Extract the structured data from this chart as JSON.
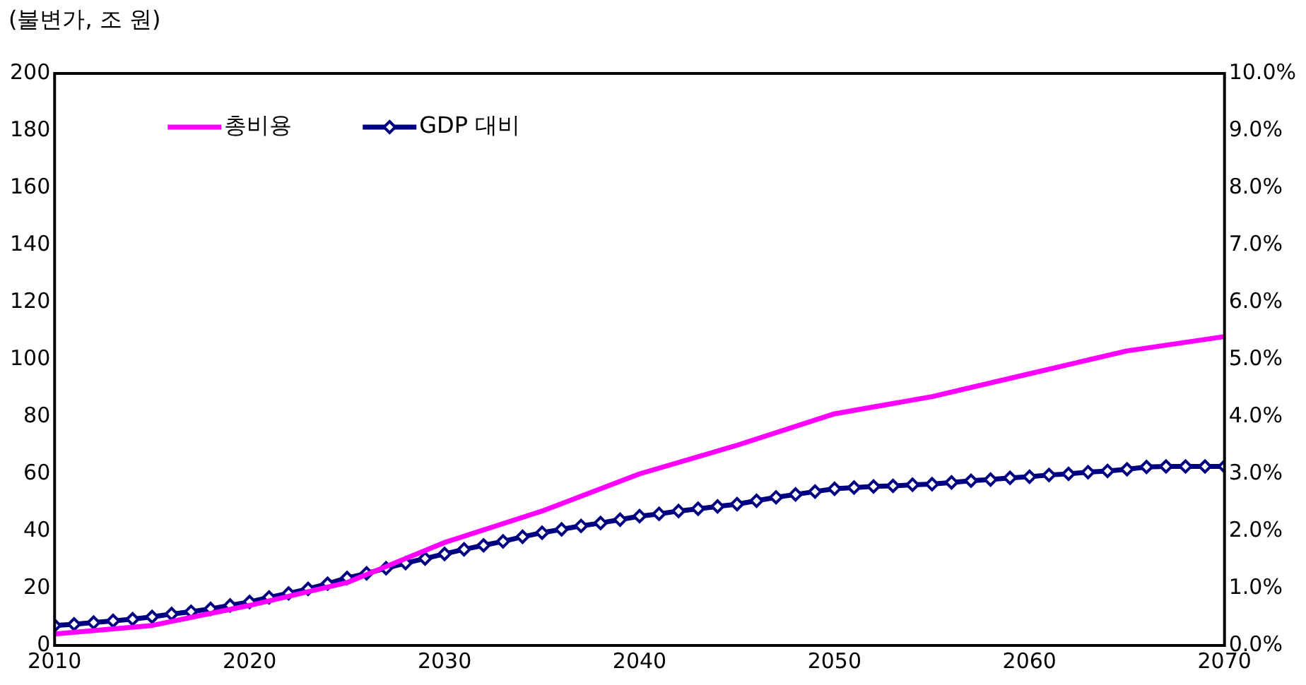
{
  "chart_data": {
    "type": "line",
    "ylabel": "(불변가, 조 원)",
    "legend": "top left",
    "grid": false,
    "x": [
      2010,
      2011,
      2012,
      2013,
      2014,
      2015,
      2016,
      2017,
      2018,
      2019,
      2020,
      2021,
      2022,
      2023,
      2024,
      2025,
      2026,
      2027,
      2028,
      2029,
      2030,
      2031,
      2032,
      2033,
      2034,
      2035,
      2036,
      2037,
      2038,
      2039,
      2040,
      2041,
      2042,
      2043,
      2044,
      2045,
      2046,
      2047,
      2048,
      2049,
      2050,
      2051,
      2052,
      2053,
      2054,
      2055,
      2056,
      2057,
      2058,
      2059,
      2060,
      2061,
      2062,
      2063,
      2064,
      2065,
      2066,
      2067,
      2068,
      2069,
      2070
    ],
    "xlim": [
      2010,
      2070
    ],
    "xticks": [
      2010,
      2020,
      2030,
      2040,
      2050,
      2060,
      2070
    ],
    "ylim": [
      0,
      200
    ],
    "yticks": [
      0,
      20,
      40,
      60,
      80,
      100,
      120,
      140,
      160,
      180,
      200
    ],
    "y2lim": [
      0,
      10
    ],
    "y2ticks": [
      {
        "value": 0,
        "label": "0.0%"
      },
      {
        "value": 1,
        "label": "1.0%"
      },
      {
        "value": 2,
        "label": "2.0%"
      },
      {
        "value": 3,
        "label": "3.0%"
      },
      {
        "value": 4,
        "label": "4.0%"
      },
      {
        "value": 5,
        "label": "5.0%"
      },
      {
        "value": 6,
        "label": "6.0%"
      },
      {
        "value": 7,
        "label": "7.0%"
      },
      {
        "value": 8,
        "label": "8.0%"
      },
      {
        "value": 9,
        "label": "9.0%"
      },
      {
        "value": 10,
        "label": "10.0%"
      }
    ],
    "series": [
      {
        "name": "총비용",
        "color": "#ff00ff",
        "marker": "none",
        "x": [
          2010,
          2015,
          2020,
          2025,
          2030,
          2035,
          2040,
          2045,
          2050,
          2055,
          2060,
          2065,
          2070
        ],
        "values": [
          4,
          7,
          14,
          22,
          36,
          47,
          60,
          70,
          81,
          87,
          95,
          103,
          108
        ]
      },
      {
        "name": "GDP 대비",
        "color": "#000080",
        "axis": "y2",
        "marker": "diamond",
        "values": [
          0.35,
          0.37,
          0.4,
          0.43,
          0.46,
          0.5,
          0.55,
          0.59,
          0.64,
          0.7,
          0.76,
          0.84,
          0.91,
          0.99,
          1.08,
          1.18,
          1.26,
          1.35,
          1.44,
          1.52,
          1.6,
          1.68,
          1.75,
          1.82,
          1.9,
          1.97,
          2.03,
          2.09,
          2.14,
          2.2,
          2.26,
          2.3,
          2.35,
          2.39,
          2.43,
          2.47,
          2.53,
          2.59,
          2.64,
          2.69,
          2.74,
          2.76,
          2.78,
          2.79,
          2.81,
          2.82,
          2.85,
          2.88,
          2.9,
          2.93,
          2.95,
          2.98,
          3.0,
          3.03,
          3.05,
          3.08,
          3.12,
          3.13,
          3.13,
          3.13,
          3.13
        ]
      }
    ]
  }
}
